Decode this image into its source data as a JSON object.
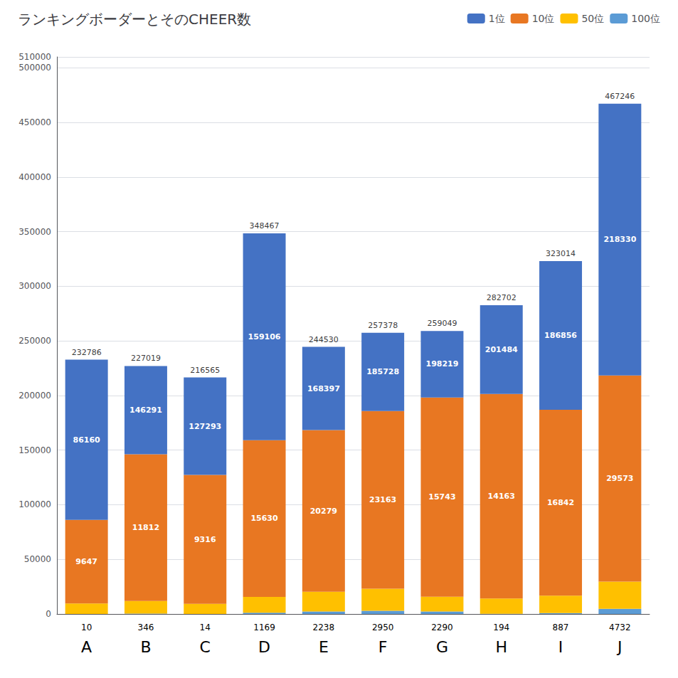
{
  "chart_data": {
    "type": "bar",
    "title": "ランキングボーダーとそのCHEER数",
    "categories": [
      "A",
      "B",
      "C",
      "D",
      "E",
      "F",
      "G",
      "H",
      "I",
      "J"
    ],
    "x_sub_labels": [
      "10",
      "346",
      "14",
      "1169",
      "2238",
      "2950",
      "2290",
      "194",
      "887",
      "4732"
    ],
    "stacked": true,
    "series": [
      {
        "name": "100位",
        "color": "#5B9BD5",
        "values": [
          10,
          346,
          14,
          1169,
          2238,
          2950,
          2290,
          194,
          887,
          4732
        ]
      },
      {
        "name": "50位",
        "color": "#FFC000",
        "values": [
          9637,
          11466,
          9302,
          14461,
          18041,
          20213,
          13453,
          13969,
          15955,
          24841
        ]
      },
      {
        "name": "10位",
        "color": "#E87722",
        "values": [
          76513,
          134479,
          117977,
          143476,
          148118,
          162565,
          182476,
          187321,
          170014,
          188757
        ]
      },
      {
        "name": "1位",
        "color": "#4472C4",
        "values": [
          146626,
          80728,
          89272,
          189361,
          76133,
          71650,
          60830,
          81218,
          136158,
          248916
        ]
      }
    ],
    "annotations": [
      {
        "series": "1位",
        "position": "top",
        "values": [
          232786,
          227019,
          216565,
          348467,
          244530,
          257378,
          259049,
          282702,
          323014,
          467246
        ]
      },
      {
        "series": "1位",
        "position": "inside",
        "values": [
          86160,
          146291,
          127293,
          159106,
          168397,
          185728,
          198219,
          201484,
          186856,
          218330
        ]
      },
      {
        "series": "10位",
        "position": "inside",
        "values": [
          9647,
          11812,
          9316,
          15630,
          20279,
          23163,
          15743,
          14163,
          16842,
          29573
        ]
      }
    ],
    "ylim": [
      0,
      510000
    ],
    "yticks": [
      0,
      50000,
      100000,
      150000,
      200000,
      250000,
      300000,
      350000,
      400000,
      450000,
      500000
    ],
    "grid": true,
    "legend": "upper right"
  }
}
